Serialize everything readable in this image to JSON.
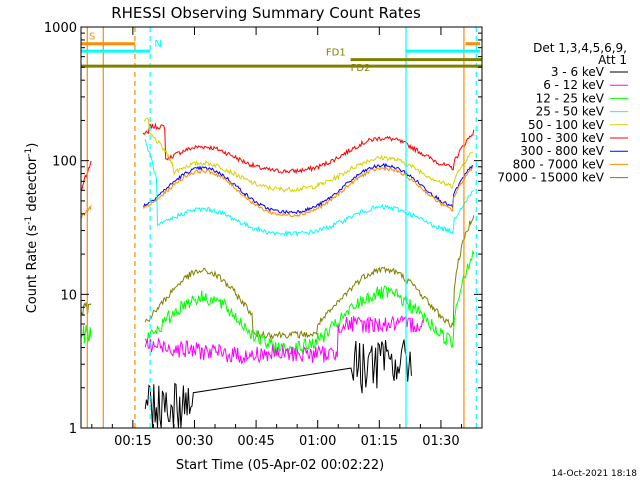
{
  "chart_data": {
    "type": "line",
    "title": "RHESSI Observing Summary Count Rates",
    "xlabel": "Start Time (05-Apr-02 00:02:22)",
    "ylabel_main": "Count Rate (s",
    "ylabel_sup1": "-1",
    "ylabel_mid": " detector",
    "ylabel_sup2": "-1",
    "ylabel_end": ")",
    "y_scale": "log",
    "ylim": [
      1,
      1000
    ],
    "xlim_minutes": [
      2.37,
      100
    ],
    "x_ticks": [
      {
        "min": 15,
        "label": "00:15"
      },
      {
        "min": 30,
        "label": "00:30"
      },
      {
        "min": 45,
        "label": "00:45"
      },
      {
        "min": 60,
        "label": "01:00"
      },
      {
        "min": 75,
        "label": "01:15"
      },
      {
        "min": 90,
        "label": "01:30"
      }
    ],
    "y_ticks": [
      {
        "val": 1,
        "label": "1"
      },
      {
        "val": 10,
        "label": "10"
      },
      {
        "val": 100,
        "label": "100"
      },
      {
        "val": 1000,
        "label": "1000"
      }
    ],
    "legend": {
      "header1": "Det 1,3,4,5,6,9,",
      "header2": "Att 1",
      "position": "right"
    },
    "series": [
      {
        "name": "3 - 6 keV",
        "color": "#000000"
      },
      {
        "name": "6 - 12 keV",
        "color": "#ff00ff"
      },
      {
        "name": "12 - 25 keV",
        "color": "#00ff00"
      },
      {
        "name": "25 - 50 keV",
        "color": "#00ffff"
      },
      {
        "name": "50 - 100 keV",
        "color": "#d4d400"
      },
      {
        "name": "100 - 300 keV",
        "color": "#ff0000"
      },
      {
        "name": "300 - 800 keV",
        "color": "#0000ff"
      },
      {
        "name": "800 - 7000 keV",
        "color": "#ff8c00"
      },
      {
        "name": "7000 - 15000 keV",
        "color": "#808000"
      }
    ],
    "flags": [
      {
        "label": "S",
        "color": "#ff8c00",
        "start": 2.37,
        "end": 15.5,
        "level": 750
      },
      {
        "label": "N",
        "color": "#00ffff",
        "start": 2.37,
        "end": 19.2,
        "level": 660
      },
      {
        "label": "FD1",
        "color": "#808000",
        "start": 68,
        "end": 100,
        "level": 570
      },
      {
        "label": "FD2",
        "color": "#808000",
        "start": 2.37,
        "end": 100,
        "level": 510
      }
    ],
    "note": "14-Oct-2021 18:18"
  }
}
